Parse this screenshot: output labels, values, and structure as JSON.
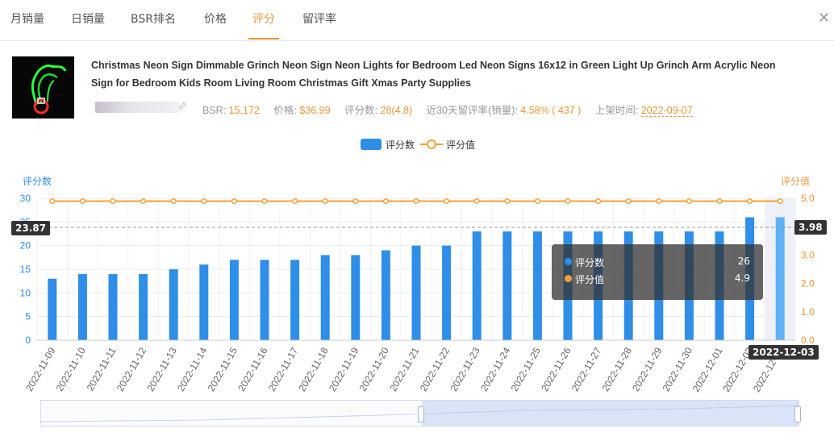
{
  "tabs": [
    {
      "label": "月销量",
      "active": false
    },
    {
      "label": "日销量",
      "active": false
    },
    {
      "label": "BSR排名",
      "active": false
    },
    {
      "label": "价格",
      "active": false
    },
    {
      "label": "评分",
      "active": true
    },
    {
      "label": "留评率",
      "active": false
    }
  ],
  "close_icon": "close-icon",
  "product": {
    "title_line1": "Christmas Neon Sign Dimmable Grinch Neon Sign Neon Lights for Bedroom Led Neon Signs 16x12 in Green Light Up Grinch Arm Acrylic Neon",
    "title_line2": "Sign for Bedroom Kids Room Living Room Christmas Gift Xmas Party Supplies",
    "bsr_label": "BSR: ",
    "bsr_value": "15,172",
    "price_label": "价格: ",
    "price_value": "$36.99",
    "rating_label": "评分数: ",
    "rating_value": "28(4.8)",
    "review_rate_label": "近30天留评率(销量): ",
    "review_rate_value": "4.58% ( 437 )",
    "listed_label": "上架时间: ",
    "listed_value": "2022-09-07"
  },
  "legend": {
    "bar": "评分数",
    "line": "评分值"
  },
  "tooltip": {
    "rows": [
      {
        "name": "评分数",
        "value": "26",
        "color": "#2e8ee8"
      },
      {
        "name": "评分值",
        "value": "4.9",
        "color": "#f0a23a"
      }
    ]
  },
  "crosshair": {
    "left_value": "23.87",
    "right_value": "3.98",
    "date": "2022-12-03"
  },
  "colors": {
    "accent": "#e8963a",
    "bar": "#2e8ee8",
    "bar_highlight": "#5fb0f4",
    "line": "#f0a23a",
    "left_axis": "#2e8ee8",
    "right_axis": "#e8963a"
  },
  "chart_data": {
    "type": "bar",
    "title": "",
    "categories": [
      "2022-11-09",
      "2022-11-10",
      "2022-11-11",
      "2022-11-12",
      "2022-11-13",
      "2022-11-14",
      "2022-11-15",
      "2022-11-16",
      "2022-11-17",
      "2022-11-18",
      "2022-11-19",
      "2022-11-20",
      "2022-11-21",
      "2022-11-22",
      "2022-11-23",
      "2022-11-24",
      "2022-11-25",
      "2022-11-26",
      "2022-11-27",
      "2022-11-28",
      "2022-11-29",
      "2022-11-30",
      "2022-12-01",
      "2022-12-02",
      "2022-12-03"
    ],
    "series": [
      {
        "name": "评分数",
        "type": "bar",
        "axis": "left",
        "values": [
          13,
          14,
          14,
          14,
          15,
          16,
          17,
          17,
          17,
          18,
          18,
          19,
          20,
          20,
          23,
          23,
          23,
          23,
          23,
          23,
          23,
          23,
          23,
          26,
          26
        ]
      },
      {
        "name": "评分值",
        "type": "line",
        "axis": "right",
        "values": [
          4.9,
          4.9,
          4.9,
          4.9,
          4.9,
          4.9,
          4.9,
          4.9,
          4.9,
          4.9,
          4.9,
          4.9,
          4.9,
          4.9,
          4.9,
          4.9,
          4.9,
          4.9,
          4.9,
          4.9,
          4.9,
          4.9,
          4.9,
          4.9,
          4.9
        ]
      }
    ],
    "ylabel_left": "评分数",
    "ylabel_right": "评分值",
    "ylim_left": [
      0,
      30
    ],
    "ylim_right": [
      0,
      5
    ],
    "yticks_left": [
      "0",
      "5",
      "10",
      "15",
      "20",
      "25",
      "30"
    ],
    "yticks_right": [
      "0.0",
      "1.0",
      "2.0",
      "3.0",
      "4.0",
      "5.0"
    ],
    "highlighted_category": "2022-12-03",
    "grid": true,
    "legend_position": "top-center"
  }
}
